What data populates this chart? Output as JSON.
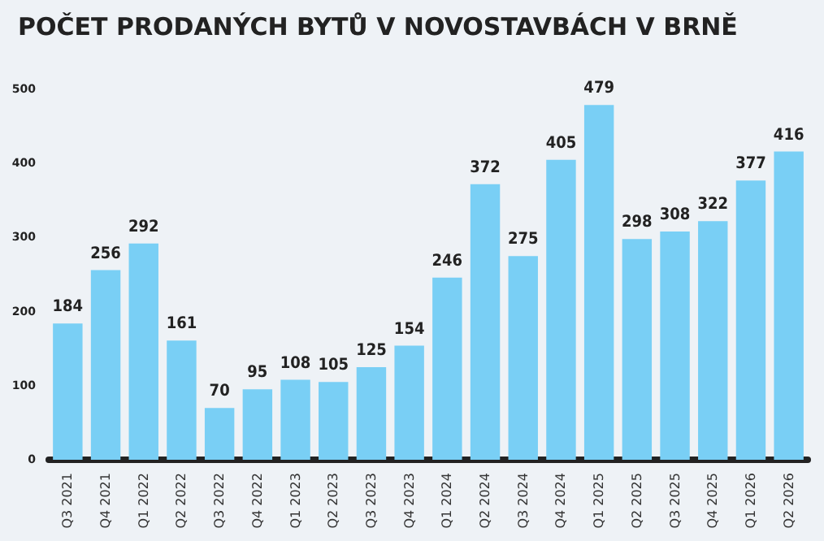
{
  "chart_data": {
    "type": "bar",
    "title": "POČET PRODANÝCH BYTŮ V NOVOSTAVBÁCH V BRNĚ",
    "categories": [
      "Q3 2021",
      "Q4 2021",
      "Q1 2022",
      "Q2 2022",
      "Q3 2022",
      "Q4 2022",
      "Q1 2023",
      "Q2 2023",
      "Q3 2023",
      "Q4 2023",
      "Q1 2024",
      "Q2 2024",
      "Q3 2024",
      "Q4 2024",
      "Q1 2025",
      "Q2 2025",
      "Q3 2025",
      "Q4 2025",
      "Q1 2026",
      "Q2 2026"
    ],
    "values": [
      184,
      256,
      292,
      161,
      70,
      95,
      108,
      105,
      125,
      154,
      246,
      372,
      275,
      405,
      479,
      298,
      308,
      322,
      377,
      416
    ],
    "color": "#79cff5",
    "ylim": [
      0,
      500
    ],
    "yticks": [
      0,
      100,
      200,
      300,
      400,
      500
    ],
    "grid": false,
    "data_labels": true
  }
}
